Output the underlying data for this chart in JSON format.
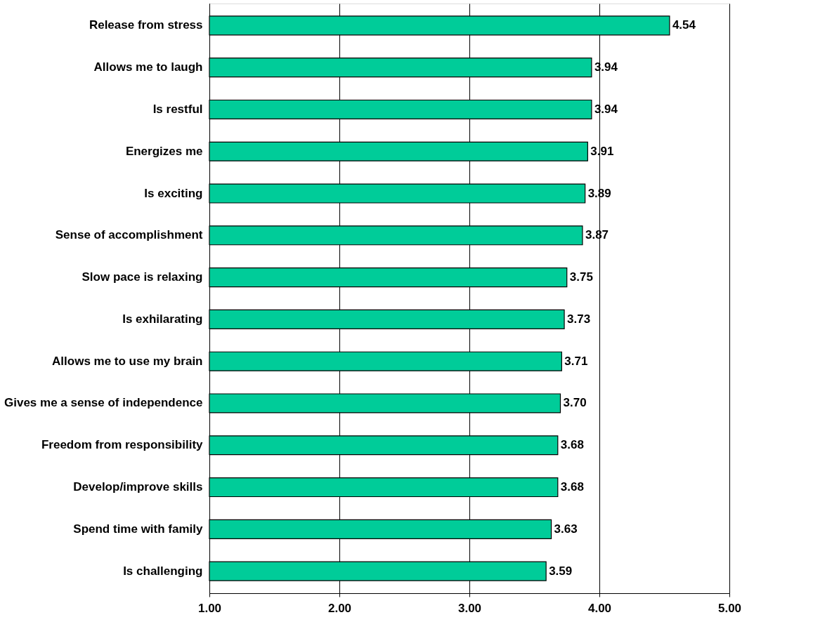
{
  "chart_data": {
    "type": "bar",
    "orientation": "horizontal",
    "categories": [
      "Release from stress",
      "Allows me to laugh",
      "Is restful",
      "Energizes me",
      "Is exciting",
      "Sense of accomplishment",
      "Slow pace is relaxing",
      "Is exhilarating",
      "Allows me to use my brain",
      "Gives me a sense of independence",
      "Freedom from responsibility",
      "Develop/improve skills",
      "Spend time with family",
      "Is challenging"
    ],
    "series": [
      {
        "color": "#00cc99",
        "values": [
          4.54,
          3.94,
          3.94,
          3.91,
          3.89,
          3.87,
          3.75,
          3.73,
          3.71,
          3.7,
          3.68,
          3.68,
          3.63,
          3.59
        ],
        "value_labels": [
          "4.54",
          "3.94",
          "3.94",
          "3.91",
          "3.89",
          "3.87",
          "3.75",
          "3.73",
          "3.71",
          "3.70",
          "3.68",
          "3.68",
          "3.63",
          "3.59"
        ]
      }
    ],
    "xlim": [
      1,
      5
    ],
    "xticks": [
      {
        "value": 1,
        "label": "1.00"
      },
      {
        "value": 2,
        "label": "2.00"
      },
      {
        "value": 3,
        "label": "3.00"
      },
      {
        "value": 4,
        "label": "4.00"
      },
      {
        "value": 5,
        "label": "5.00"
      }
    ],
    "grid": "x"
  }
}
